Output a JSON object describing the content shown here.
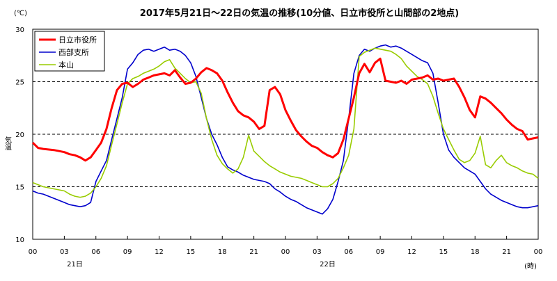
{
  "chart_data": {
    "type": "line",
    "title": "2017年5月21日～22日の気温の推移(10分値、日立市役所と山間部の2地点)",
    "ylabel": "気温",
    "yunit": "(℃)",
    "xunit": "(時)",
    "ylim": [
      10,
      30
    ],
    "yticks": [
      "10",
      "15",
      "20",
      "25",
      "30"
    ],
    "xlim": [
      0,
      48
    ],
    "xtick_labels": [
      "00",
      "03",
      "06",
      "09",
      "12",
      "15",
      "18",
      "21",
      "00",
      "03",
      "06",
      "09",
      "12",
      "15",
      "18",
      "21",
      "00"
    ],
    "date_labels": [
      "21日",
      "22日"
    ],
    "grid": "dashed horizontal at 15, 20, 25",
    "legend_position": "top-left",
    "series": [
      {
        "name": "日立市役所",
        "color": "#ff0000",
        "x": [
          0,
          0.5,
          1,
          2,
          3,
          3.5,
          4,
          4.5,
          5,
          5.5,
          6,
          6.5,
          7,
          7.5,
          8,
          8.5,
          9,
          9.5,
          10,
          10.5,
          11,
          11.5,
          12,
          12.5,
          13,
          13.5,
          14,
          14.5,
          15,
          15.5,
          16,
          16.5,
          17,
          17.5,
          18,
          18.5,
          19,
          19.5,
          20,
          20.5,
          21,
          21.5,
          22,
          22.5,
          23,
          23.5,
          24,
          24.5,
          25,
          25.5,
          26,
          26.5,
          27,
          27.5,
          28,
          28.5,
          29,
          29.5,
          30,
          30.5,
          31,
          31.5,
          32,
          32.5,
          33,
          33.5,
          34,
          34.5,
          35,
          35.5,
          36,
          36.5,
          37,
          37.5,
          38,
          38.5,
          39,
          39.5,
          40,
          40.5,
          41,
          41.5,
          42,
          42.5,
          43,
          43.5,
          44,
          44.5,
          45,
          45.5,
          46,
          46.5,
          47,
          47.5,
          48
        ],
        "y": [
          19.2,
          18.7,
          18.6,
          18.5,
          18.3,
          18.1,
          18.0,
          17.8,
          17.5,
          17.8,
          18.5,
          19.2,
          20.5,
          22.5,
          24.2,
          24.8,
          24.9,
          24.5,
          24.8,
          25.2,
          25.4,
          25.6,
          25.7,
          25.8,
          25.6,
          26.1,
          25.4,
          24.8,
          24.9,
          25.3,
          25.9,
          26.3,
          26.1,
          25.8,
          25.1,
          24.0,
          23.0,
          22.2,
          21.8,
          21.6,
          21.2,
          20.5,
          20.8,
          24.2,
          24.5,
          23.8,
          22.3,
          21.3,
          20.4,
          19.8,
          19.3,
          18.9,
          18.7,
          18.3,
          18.0,
          17.8,
          18.2,
          19.5,
          21.5,
          23.5,
          25.8,
          26.7,
          25.9,
          26.8,
          27.2,
          25.1,
          25.0,
          24.9,
          25.1,
          24.8,
          25.2,
          25.3,
          25.4,
          25.6,
          25.2,
          25.3,
          25.1,
          25.2,
          25.3,
          24.5,
          23.5,
          22.3,
          21.6,
          23.6,
          23.4,
          23.0,
          22.5,
          22.0,
          21.4,
          20.9,
          20.5,
          20.3,
          19.5,
          19.6,
          19.7
        ]
      },
      {
        "name": "西部支所",
        "color": "#0000cc",
        "x": [
          0,
          0.5,
          1,
          2,
          3,
          3.5,
          4,
          4.5,
          5,
          5.5,
          6,
          6.5,
          7,
          7.5,
          8,
          8.5,
          9,
          9.5,
          10,
          10.5,
          11,
          11.5,
          12,
          12.5,
          13,
          13.5,
          14,
          14.5,
          15,
          15.5,
          16,
          16.5,
          17,
          17.5,
          18,
          18.5,
          19,
          19.5,
          20,
          20.5,
          21,
          21.5,
          22,
          22.5,
          23,
          23.5,
          24,
          24.5,
          25,
          25.5,
          26,
          26.5,
          27,
          27.5,
          28,
          28.5,
          29,
          29.5,
          30,
          30.5,
          31,
          31.5,
          32,
          32.5,
          33,
          33.5,
          34,
          34.5,
          35,
          35.5,
          36,
          36.5,
          37,
          37.5,
          38,
          38.5,
          39,
          39.5,
          40,
          40.5,
          41,
          41.5,
          42,
          42.5,
          43,
          43.5,
          44,
          44.5,
          45,
          45.5,
          46,
          46.5,
          47,
          47.5,
          48
        ],
        "y": [
          14.6,
          14.4,
          14.3,
          13.9,
          13.5,
          13.3,
          13.2,
          13.1,
          13.2,
          13.5,
          15.5,
          16.5,
          17.5,
          19.5,
          21.5,
          23.5,
          26.2,
          26.8,
          27.6,
          28.0,
          28.1,
          27.9,
          28.1,
          28.3,
          28.0,
          28.1,
          27.9,
          27.5,
          26.8,
          25.5,
          23.5,
          21.5,
          20.0,
          19.0,
          17.8,
          16.9,
          16.6,
          16.4,
          16.1,
          15.9,
          15.7,
          15.6,
          15.5,
          15.3,
          14.8,
          14.5,
          14.1,
          13.8,
          13.6,
          13.3,
          13.0,
          12.8,
          12.6,
          12.4,
          12.9,
          13.8,
          15.5,
          17.5,
          21.5,
          25.8,
          27.5,
          28.1,
          27.9,
          28.2,
          28.4,
          28.5,
          28.3,
          28.4,
          28.2,
          27.9,
          27.6,
          27.3,
          27.0,
          26.8,
          25.8,
          23.0,
          20.0,
          18.5,
          17.8,
          17.3,
          16.8,
          16.5,
          16.2,
          15.5,
          14.8,
          14.3,
          14.0,
          13.7,
          13.5,
          13.3,
          13.1,
          13.0,
          13.0,
          13.1,
          13.2
        ]
      },
      {
        "name": "本山",
        "color": "#99cc00",
        "x": [
          0,
          0.5,
          1,
          2,
          3,
          3.5,
          4,
          4.5,
          5,
          5.5,
          6,
          6.5,
          7,
          7.5,
          8,
          8.5,
          9,
          9.5,
          10,
          10.5,
          11,
          11.5,
          12,
          12.5,
          13,
          13.5,
          14,
          14.5,
          15,
          15.5,
          16,
          16.5,
          17,
          17.5,
          18,
          18.5,
          19,
          19.5,
          20,
          20.5,
          21,
          21.5,
          22,
          22.5,
          23,
          23.5,
          24,
          24.5,
          25,
          25.5,
          26,
          26.5,
          27,
          27.5,
          28,
          28.5,
          29,
          29.5,
          30,
          30.5,
          31,
          31.5,
          32,
          32.5,
          33,
          33.5,
          34,
          34.5,
          35,
          35.5,
          36,
          36.5,
          37,
          37.5,
          38,
          38.5,
          39,
          39.5,
          40,
          40.5,
          41,
          41.5,
          42,
          42.5,
          43,
          43.5,
          44,
          44.5,
          45,
          45.5,
          46,
          46.5,
          47,
          47.5,
          48
        ],
        "y": [
          15.4,
          15.2,
          15.0,
          14.8,
          14.6,
          14.3,
          14.1,
          14.0,
          14.1,
          14.4,
          15.0,
          15.8,
          17.0,
          19.0,
          21.0,
          23.0,
          24.8,
          25.3,
          25.5,
          25.8,
          26.0,
          26.2,
          26.5,
          26.9,
          27.1,
          26.3,
          25.8,
          25.3,
          24.9,
          25.0,
          23.9,
          21.5,
          19.5,
          18.0,
          17.2,
          16.7,
          16.3,
          16.7,
          17.8,
          19.9,
          18.4,
          17.9,
          17.4,
          17.0,
          16.7,
          16.4,
          16.2,
          16.0,
          15.9,
          15.8,
          15.6,
          15.4,
          15.2,
          15.0,
          15.0,
          15.3,
          15.8,
          16.8,
          18.0,
          20.5,
          27.4,
          27.8,
          28.0,
          28.2,
          28.1,
          28.0,
          27.9,
          27.6,
          27.2,
          26.5,
          26.0,
          25.5,
          25.2,
          24.8,
          23.6,
          22.0,
          20.5,
          19.5,
          18.5,
          17.6,
          17.3,
          17.5,
          18.2,
          19.8,
          17.1,
          16.8,
          17.5,
          18.0,
          17.3,
          17.0,
          16.8,
          16.5,
          16.3,
          16.2,
          15.8
        ]
      }
    ]
  }
}
